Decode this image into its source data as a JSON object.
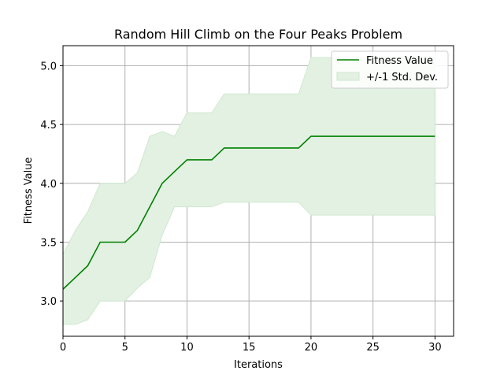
{
  "chart_data": {
    "type": "line",
    "title": "Random Hill Climb on the Four Peaks Problem",
    "xlabel": "Iterations",
    "ylabel": "Fitness Value",
    "xlim": [
      0,
      31.5
    ],
    "ylim": [
      2.7,
      5.17
    ],
    "xticks": [
      0,
      5,
      10,
      15,
      20,
      25,
      30
    ],
    "yticks": [
      3.0,
      3.5,
      4.0,
      4.5,
      5.0
    ],
    "xtick_labels": [
      "0",
      "5",
      "10",
      "15",
      "20",
      "25",
      "30"
    ],
    "ytick_labels": [
      "3.0",
      "3.5",
      "4.0",
      "4.5",
      "5.0"
    ],
    "grid": true,
    "legend_position": "top-right",
    "colors": {
      "line": "#008000",
      "band_fill": "#e2f1e2",
      "band_edge": "#cfe8cf",
      "grid": "#b0b0b0"
    },
    "series": [
      {
        "name": "Fitness Value",
        "x": [
          0,
          1,
          2,
          3,
          4,
          5,
          6,
          7,
          8,
          9,
          10,
          11,
          12,
          13,
          14,
          15,
          16,
          17,
          18,
          19,
          20,
          21,
          22,
          23,
          24,
          25,
          26,
          27,
          28,
          29,
          30
        ],
        "values": [
          3.1,
          3.2,
          3.3,
          3.5,
          3.5,
          3.5,
          3.6,
          3.8,
          4.0,
          4.1,
          4.2,
          4.2,
          4.2,
          4.3,
          4.3,
          4.3,
          4.3,
          4.3,
          4.3,
          4.3,
          4.4,
          4.4,
          4.4,
          4.4,
          4.4,
          4.4,
          4.4,
          4.4,
          4.4,
          4.4,
          4.4
        ]
      }
    ],
    "band": {
      "name": "+/-1 Std. Dev.",
      "x": [
        0,
        1,
        2,
        3,
        4,
        5,
        6,
        7,
        8,
        9,
        10,
        11,
        12,
        13,
        14,
        15,
        16,
        17,
        18,
        19,
        20,
        21,
        22,
        23,
        24,
        25,
        26,
        27,
        28,
        29,
        30
      ],
      "lower": [
        2.8,
        2.8,
        2.84,
        3.0,
        3.0,
        3.0,
        3.11,
        3.2,
        3.56,
        3.8,
        3.8,
        3.8,
        3.8,
        3.84,
        3.84,
        3.84,
        3.84,
        3.84,
        3.84,
        3.84,
        3.73,
        3.73,
        3.73,
        3.73,
        3.73,
        3.73,
        3.73,
        3.73,
        3.73,
        3.73,
        3.73
      ],
      "upper": [
        3.4,
        3.6,
        3.76,
        4.0,
        4.0,
        4.0,
        4.09,
        4.4,
        4.44,
        4.4,
        4.6,
        4.6,
        4.6,
        4.76,
        4.76,
        4.76,
        4.76,
        4.76,
        4.76,
        4.76,
        5.07,
        5.07,
        5.07,
        5.07,
        5.07,
        5.07,
        5.07,
        5.07,
        5.07,
        5.07,
        5.07
      ]
    }
  }
}
